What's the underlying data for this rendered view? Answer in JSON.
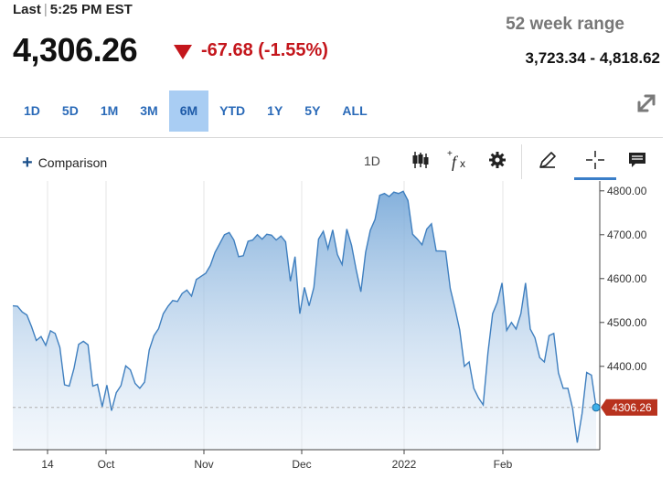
{
  "quote": {
    "last_label": "Last",
    "time": "5:25 PM EST",
    "price": "4,306.26",
    "change": "-67.68 (-1.55%)",
    "range_title": "52 week range",
    "range_value": "3,723.34 - 4,818.62",
    "down_color": "#c4161c"
  },
  "tabs": [
    {
      "label": "1D",
      "active": false
    },
    {
      "label": "5D",
      "active": false
    },
    {
      "label": "1M",
      "active": false
    },
    {
      "label": "3M",
      "active": false
    },
    {
      "label": "6M",
      "active": true
    },
    {
      "label": "YTD",
      "active": false
    },
    {
      "label": "1Y",
      "active": false
    },
    {
      "label": "5Y",
      "active": false
    },
    {
      "label": "ALL",
      "active": false
    }
  ],
  "toolbar": {
    "comparison_label": "Comparison",
    "interval_label": "1D",
    "icons": [
      "expand-icon",
      "candlestick-icon",
      "function-icon",
      "gear-icon",
      "pencil-icon",
      "crosshair-icon",
      "comment-icon"
    ]
  },
  "chart_data": {
    "type": "area",
    "x_tick_labels": [
      "14",
      "Oct",
      "Nov",
      "Dec",
      "2022",
      "Feb"
    ],
    "y_tick_labels": [
      "4800.00",
      "4700.00",
      "4600.00",
      "4500.00",
      "4400.00"
    ],
    "y_ticks": [
      4800,
      4700,
      4600,
      4500,
      4400
    ],
    "ylim": [
      4210,
      4810
    ],
    "current_value": 4306.26,
    "current_label": "4306.26",
    "line_color": "#3f7fbf",
    "label_color": "#b8321e",
    "grid": true,
    "values": [
      4538,
      4537,
      4524,
      4517,
      4490,
      4459,
      4468,
      4448,
      4481,
      4475,
      4443,
      4358,
      4355,
      4395,
      4450,
      4457,
      4449,
      4355,
      4359,
      4308,
      4357,
      4299,
      4340,
      4356,
      4401,
      4392,
      4361,
      4350,
      4364,
      4437,
      4470,
      4486,
      4520,
      4537,
      4550,
      4548,
      4566,
      4574,
      4560,
      4598,
      4605,
      4612,
      4630,
      4660,
      4680,
      4700,
      4705,
      4688,
      4650,
      4652,
      4685,
      4688,
      4700,
      4690,
      4701,
      4699,
      4688,
      4697,
      4684,
      4594,
      4650,
      4520,
      4580,
      4538,
      4580,
      4690,
      4708,
      4668,
      4711,
      4655,
      4632,
      4713,
      4676,
      4620,
      4570,
      4660,
      4710,
      4735,
      4790,
      4794,
      4787,
      4797,
      4794,
      4799,
      4778,
      4701,
      4690,
      4677,
      4713,
      4725,
      4663,
      4663,
      4662,
      4577,
      4533,
      4483,
      4400,
      4410,
      4350,
      4328,
      4312,
      4431,
      4520,
      4546,
      4590,
      4482,
      4500,
      4485,
      4520,
      4590,
      4485,
      4465,
      4420,
      4410,
      4470,
      4475,
      4385,
      4350,
      4350,
      4304,
      4226,
      4292,
      4386,
      4380,
      4306
    ]
  }
}
